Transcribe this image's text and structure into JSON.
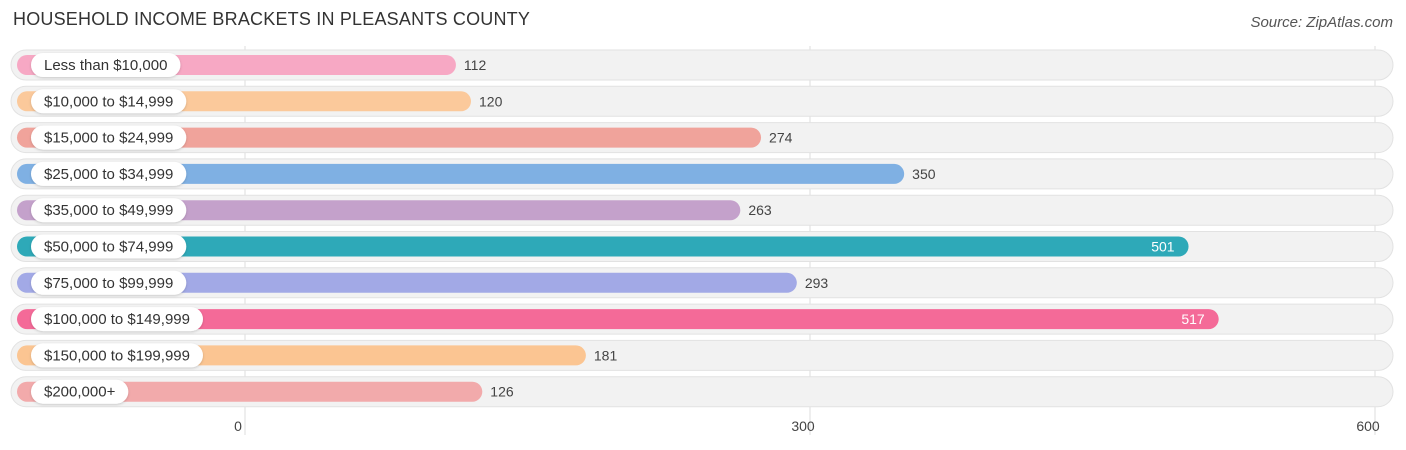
{
  "title": "HOUSEHOLD INCOME BRACKETS IN PLEASANTS COUNTY",
  "source": "Source: ZipAtlas.com",
  "chart_data": {
    "type": "bar",
    "orientation": "horizontal",
    "title": "HOUSEHOLD INCOME BRACKETS IN PLEASANTS COUNTY",
    "categories": [
      "Less than $10,000",
      "$10,000 to $14,999",
      "$15,000 to $24,999",
      "$25,000 to $34,999",
      "$35,000 to $49,999",
      "$50,000 to $74,999",
      "$75,000 to $99,999",
      "$100,000 to $149,999",
      "$150,000 to $199,999",
      "$200,000+"
    ],
    "values": [
      112,
      120,
      274,
      350,
      263,
      501,
      293,
      517,
      181,
      126
    ],
    "value_labels": [
      "112",
      "120",
      "274",
      "350",
      "263",
      "501",
      "293",
      "517",
      "181",
      "126"
    ],
    "colors": [
      "#f7a8c4",
      "#fbc99b",
      "#f0a39b",
      "#7fb0e3",
      "#c4a1cb",
      "#2ea9b8",
      "#a2a9e6",
      "#f46a98",
      "#fbc592",
      "#f2aaab"
    ],
    "xlim": [
      0,
      600
    ],
    "xticks": [
      0,
      300,
      600
    ],
    "xtick_labels": [
      "0",
      "300",
      "600"
    ],
    "grid": true,
    "legend": "none"
  }
}
